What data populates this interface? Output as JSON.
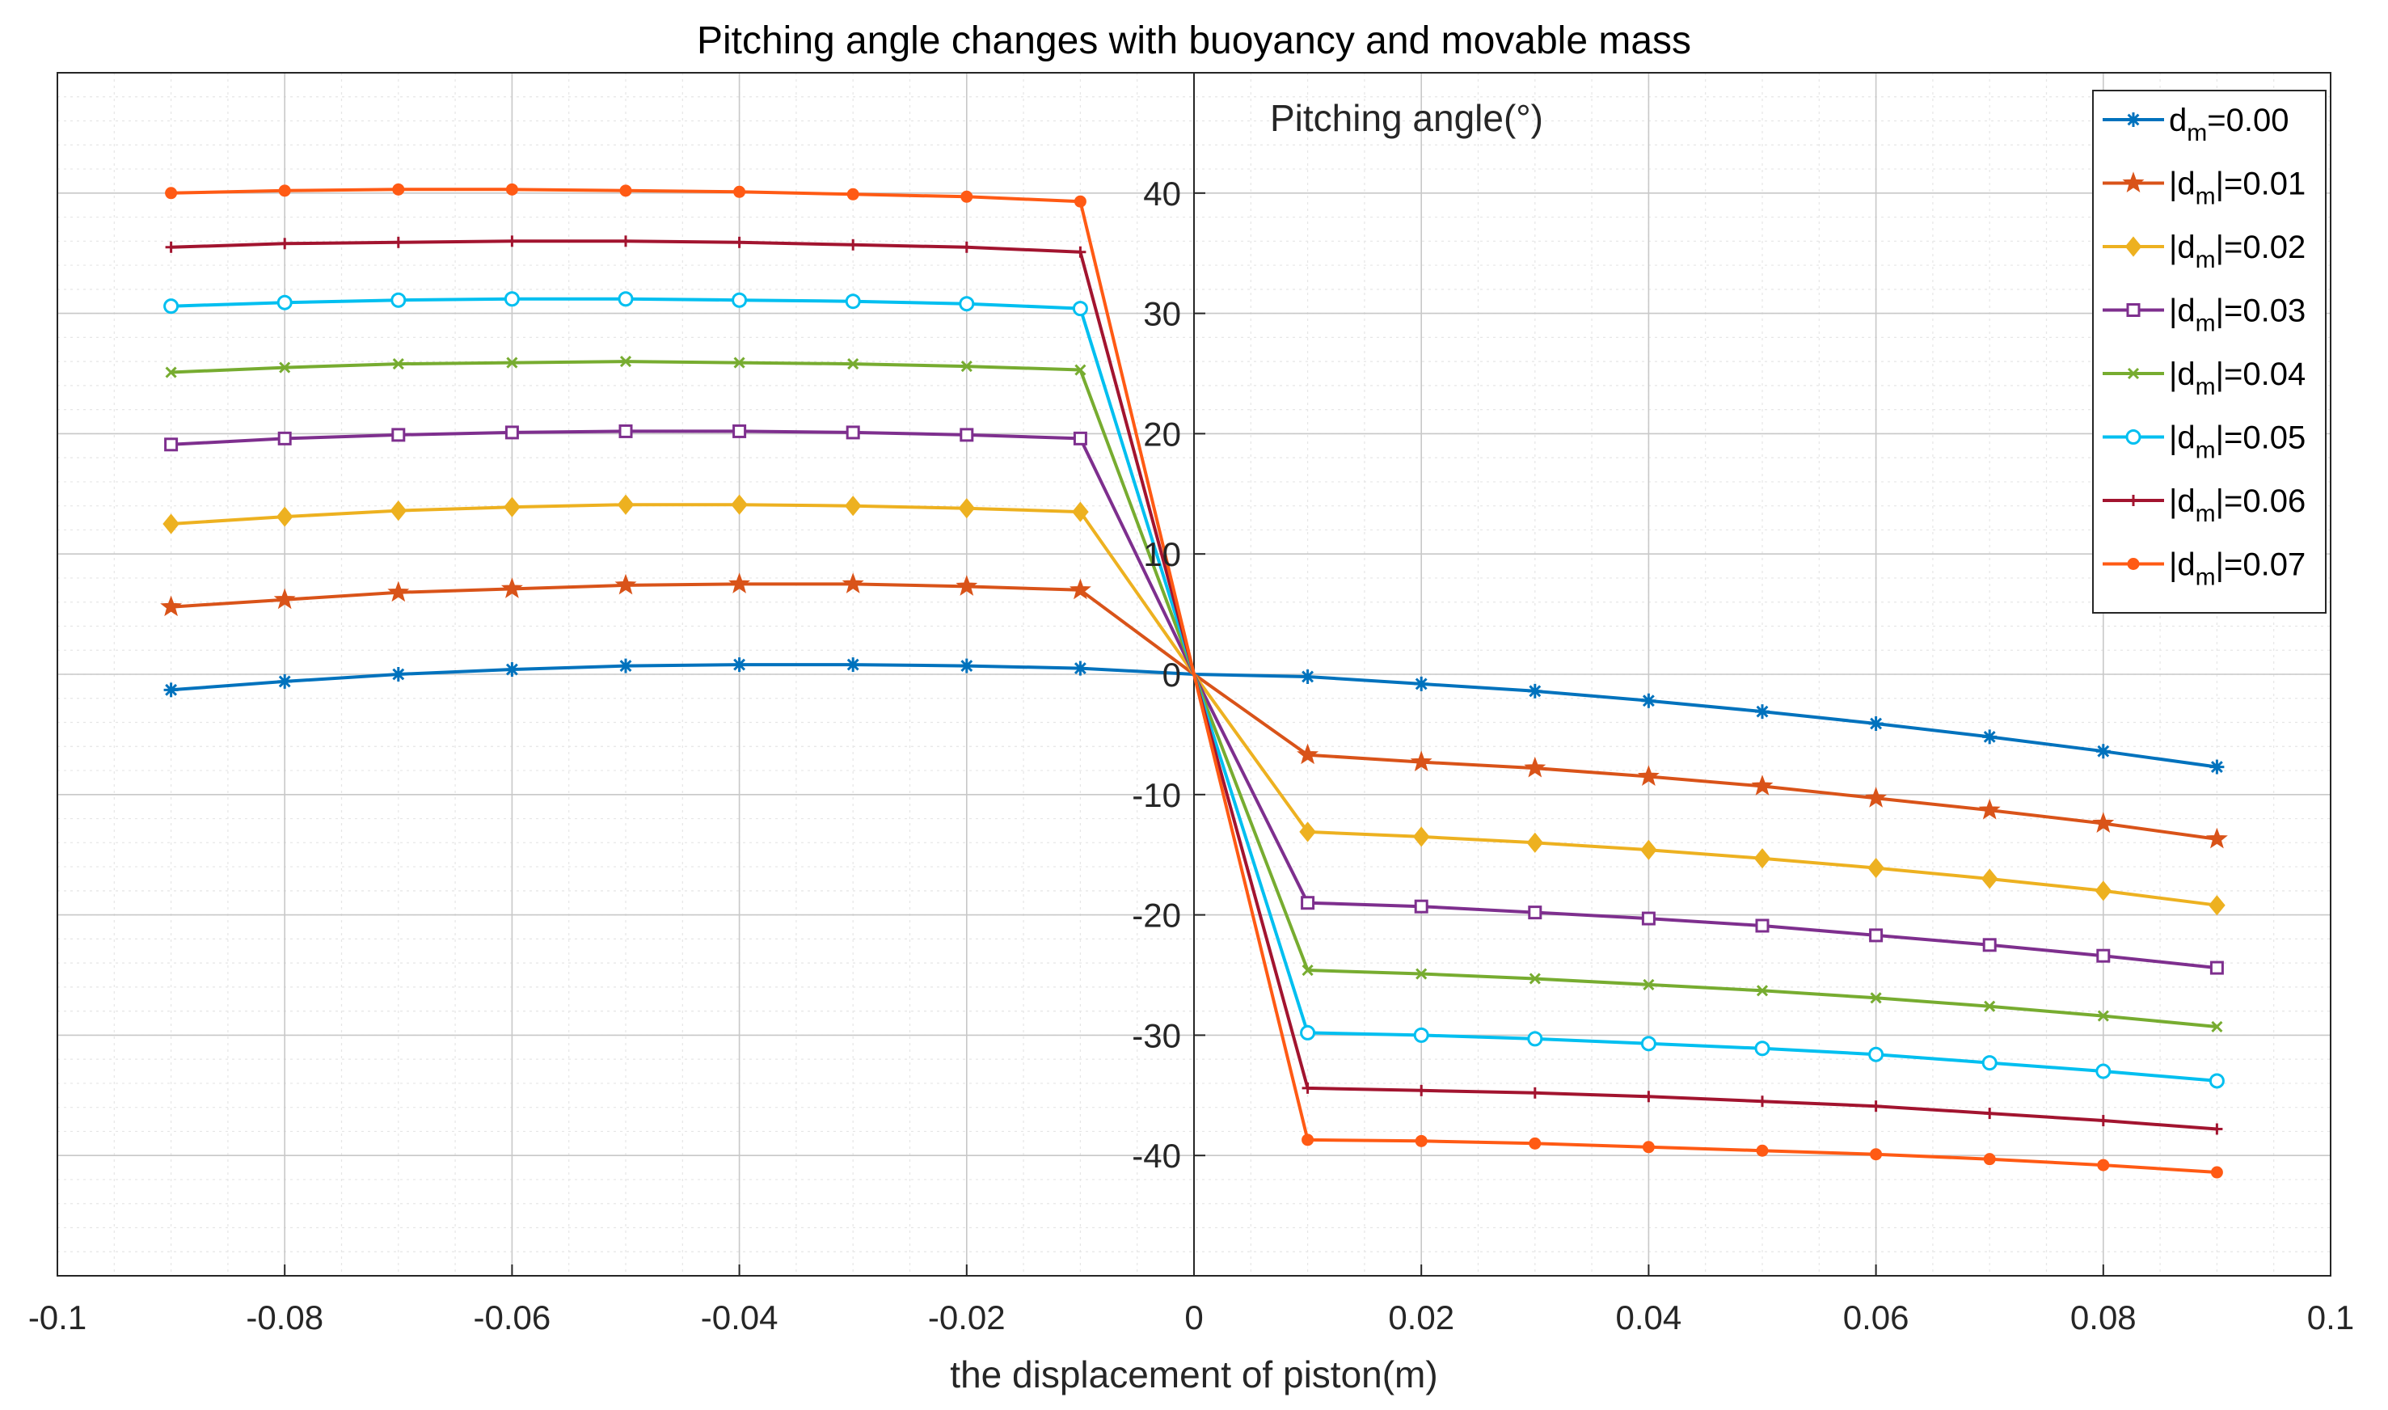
{
  "chart_data": {
    "type": "line",
    "title": "Pitching angle changes with buoyancy and movable mass",
    "xlabel": "the displacement of piston(m)",
    "ylabel": "Pitching angle(°)",
    "xlim": [
      -0.1,
      0.1
    ],
    "ylim": [
      -50,
      50
    ],
    "xticks": [
      -0.1,
      -0.08,
      -0.06,
      -0.04,
      -0.02,
      0,
      0.02,
      0.04,
      0.06,
      0.08,
      0.1
    ],
    "xtick_labels": [
      "-0.1",
      "-0.08",
      "-0.06",
      "-0.04",
      "-0.02",
      "0",
      "0.02",
      "0.04",
      "0.06",
      "0.08",
      "0.1"
    ],
    "yticks": [
      -40,
      -30,
      -20,
      -10,
      0,
      10,
      20,
      30,
      40
    ],
    "ytick_labels": [
      "-40",
      "-30",
      "-20",
      "-10",
      "0",
      "10",
      "20",
      "30",
      "40"
    ],
    "grid": true,
    "minor_grid": true,
    "legend_position": "top-right",
    "x": [
      -0.09,
      -0.08,
      -0.07,
      -0.06,
      -0.05,
      -0.04,
      -0.03,
      -0.02,
      -0.01,
      0,
      0.01,
      0.02,
      0.03,
      0.04,
      0.05,
      0.06,
      0.07,
      0.08,
      0.09
    ],
    "series": [
      {
        "name": "d_m=0.00",
        "label_pre": "d",
        "label_sub": "m",
        "label_post": "=0.00",
        "color": "#0072BD",
        "marker": "asterisk",
        "values": [
          -1.3,
          -0.6,
          0.0,
          0.4,
          0.7,
          0.8,
          0.8,
          0.7,
          0.5,
          0.0,
          -0.2,
          -0.8,
          -1.4,
          -2.2,
          -3.1,
          -4.1,
          -5.2,
          -6.4,
          -7.7
        ]
      },
      {
        "name": "|d_m|=0.01",
        "label_pre": "|d",
        "label_sub": "m",
        "label_post": "|=0.01",
        "color": "#D95319",
        "marker": "star",
        "values": [
          5.6,
          6.2,
          6.8,
          7.1,
          7.4,
          7.5,
          7.5,
          7.3,
          7.0,
          0.0,
          -6.7,
          -7.3,
          -7.8,
          -8.5,
          -9.3,
          -10.3,
          -11.3,
          -12.4,
          -13.7
        ]
      },
      {
        "name": "|d_m|=0.02",
        "label_pre": "|d",
        "label_sub": "m",
        "label_post": "|=0.02",
        "color": "#EDB120",
        "marker": "diamond",
        "values": [
          12.5,
          13.1,
          13.6,
          13.9,
          14.1,
          14.1,
          14.0,
          13.8,
          13.5,
          0.0,
          -13.1,
          -13.5,
          -14.0,
          -14.6,
          -15.3,
          -16.1,
          -17.0,
          -18.0,
          -19.2
        ]
      },
      {
        "name": "|d_m|=0.03",
        "label_pre": "|d",
        "label_sub": "m",
        "label_post": "|=0.03",
        "color": "#7E2F8E",
        "marker": "square",
        "values": [
          19.1,
          19.6,
          19.9,
          20.1,
          20.2,
          20.2,
          20.1,
          19.9,
          19.6,
          0.0,
          -19.0,
          -19.3,
          -19.8,
          -20.3,
          -20.9,
          -21.7,
          -22.5,
          -23.4,
          -24.4
        ]
      },
      {
        "name": "|d_m|=0.04",
        "label_pre": "|d",
        "label_sub": "m",
        "label_post": "|=0.04",
        "color": "#77AC30",
        "marker": "x",
        "values": [
          25.1,
          25.5,
          25.8,
          25.9,
          26.0,
          25.9,
          25.8,
          25.6,
          25.3,
          0.0,
          -24.6,
          -24.9,
          -25.3,
          -25.8,
          -26.3,
          -26.9,
          -27.6,
          -28.4,
          -29.3
        ]
      },
      {
        "name": "|d_m|=0.05",
        "label_pre": "|d",
        "label_sub": "m",
        "label_post": "|=0.05",
        "color": "#00BFF0",
        "marker": "circle",
        "values": [
          30.6,
          30.9,
          31.1,
          31.2,
          31.2,
          31.1,
          31.0,
          30.8,
          30.4,
          0.0,
          -29.8,
          -30.0,
          -30.3,
          -30.7,
          -31.1,
          -31.6,
          -32.3,
          -33.0,
          -33.8
        ]
      },
      {
        "name": "|d_m|=0.06",
        "label_pre": "|d",
        "label_sub": "m",
        "label_post": "|=0.06",
        "color": "#A2142F",
        "marker": "plus",
        "values": [
          35.5,
          35.8,
          35.9,
          36.0,
          36.0,
          35.9,
          35.7,
          35.5,
          35.1,
          0.0,
          -34.4,
          -34.6,
          -34.8,
          -35.1,
          -35.5,
          -35.9,
          -36.5,
          -37.1,
          -37.8
        ]
      },
      {
        "name": "|d_m|=0.07",
        "label_pre": "|d",
        "label_sub": "m",
        "label_post": "|=0.07",
        "color": "#FF5A14",
        "marker": "dot",
        "values": [
          40.0,
          40.2,
          40.3,
          40.3,
          40.2,
          40.1,
          39.9,
          39.7,
          39.3,
          0.0,
          -38.7,
          -38.8,
          -39.0,
          -39.3,
          -39.6,
          -39.9,
          -40.3,
          -40.8,
          -41.4
        ]
      }
    ]
  }
}
